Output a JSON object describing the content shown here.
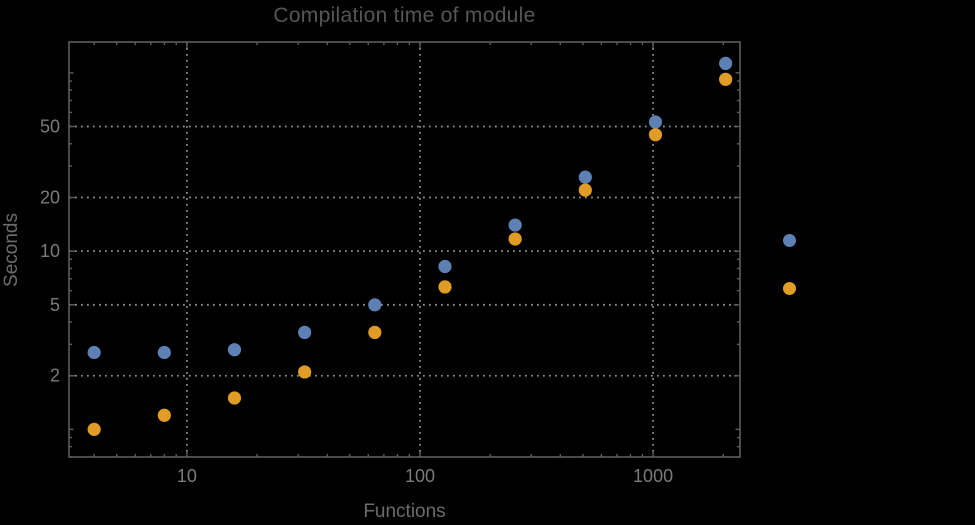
{
  "styles": {
    "background": "#000000",
    "frame_color": "#5d5d5d",
    "grid_color": "#8e8e8e",
    "tick_color": "#5d5d5d",
    "tick_label_color": "#7b7b7b",
    "title_color": "#565656",
    "axis_label_color": "#6c6c6c"
  },
  "chart_data": {
    "type": "scatter",
    "title": "Compilation time of module",
    "xlabel": "Functions",
    "ylabel": "Seconds",
    "x_scale": "log",
    "y_scale": "log",
    "xlim": [
      3.12,
      2360
    ],
    "ylim": [
      0.7,
      149
    ],
    "x_ticks": [
      10,
      100,
      1000
    ],
    "y_ticks": [
      2,
      5,
      10,
      20,
      50
    ],
    "grid": true,
    "x": [
      4,
      8,
      16,
      32,
      64,
      128,
      256,
      512,
      1024,
      2048
    ],
    "series": [
      {
        "name": "series-1-blue",
        "color": "#5E81B5",
        "values": [
          2.7,
          2.7,
          2.8,
          3.5,
          5.0,
          8.2,
          14,
          26,
          53,
          113
        ]
      },
      {
        "name": "series-2-orange",
        "color": "#E09C24",
        "values": [
          1.0,
          1.2,
          1.5,
          2.1,
          3.5,
          6.3,
          11.7,
          22,
          45,
          92
        ]
      }
    ],
    "legend": {
      "position": "right-outside",
      "items": [
        {
          "label": "",
          "color": "#5E81B5"
        },
        {
          "label": "",
          "color": "#E09C24"
        }
      ]
    }
  }
}
